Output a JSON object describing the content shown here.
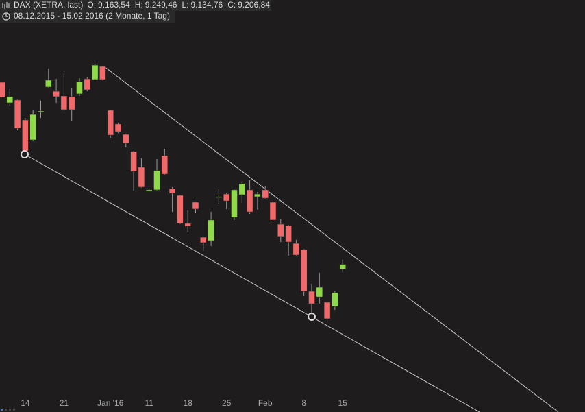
{
  "header": {
    "title": "DAX (XETRA, last)",
    "quote": [
      {
        "label": "O:",
        "value": "9.163,54"
      },
      {
        "label": "H:",
        "value": "9.249,46"
      },
      {
        "label": "L:",
        "value": "9.134,76"
      },
      {
        "label": "C:",
        "value": "9.206,84"
      }
    ],
    "range": "08.12.2015 - 15.02.2016 (2 Monate, 1 Tag)"
  },
  "chart_data": {
    "type": "candlestick",
    "categories": [
      null,
      null,
      null,
      "14",
      null,
      null,
      null,
      null,
      "21",
      null,
      null,
      null,
      null,
      null,
      "Jan '16",
      null,
      null,
      null,
      null,
      "11",
      null,
      null,
      null,
      null,
      "18",
      null,
      null,
      null,
      null,
      "25",
      null,
      null,
      null,
      null,
      "Feb",
      null,
      null,
      null,
      null,
      "8",
      null,
      null,
      null,
      null,
      "15"
    ],
    "open": [
      10855,
      10669,
      10694,
      10514,
      10334,
      10588,
      10812,
      10774,
      10731,
      10725,
      10750,
      10886,
      10880,
      10998,
      10601,
      10477,
      10383,
      10228,
      10086,
      9868,
      9881,
      10191,
      9893,
      9831,
      9577,
      9769,
      9452,
      9421,
      9812,
      9843,
      9632,
      9837,
      9881,
      9819,
      9881,
      9769,
      9570,
      9558,
      9396,
      9341,
      8962,
      8912,
      8863,
      8825,
      9163.54
    ],
    "high": [
      10855,
      10793,
      10700,
      10532,
      10607,
      10688,
      10979,
      10886,
      10936,
      10806,
      10892,
      10905,
      11017,
      11004,
      10607,
      10489,
      10390,
      10234,
      10166,
      9893,
      10160,
      10253,
      9906,
      9837,
      9694,
      9775,
      9459,
      9682,
      9887,
      9856,
      9887,
      9949,
      9974,
      9862,
      9912,
      9775,
      9614,
      9564,
      9428,
      9347,
      9030,
      9130,
      8869,
      8962,
      9249.46
    ],
    "low": [
      10719,
      10638,
      10421,
      10203,
      10321,
      10532,
      10806,
      10669,
      10594,
      10508,
      10731,
      10774,
      10874,
      10874,
      10352,
      10396,
      10265,
      9874,
      9899,
      9862,
      9874,
      10017,
      9682,
      9570,
      9496,
      9670,
      9328,
      9372,
      9757,
      9707,
      9608,
      9763,
      9663,
      9701,
      9800,
      9595,
      9409,
      9285,
      9285,
      8919,
      8732,
      8850,
      8670,
      8794,
      9134.76
    ],
    "close": [
      10719,
      10725,
      10439,
      10234,
      10563,
      10594,
      10874,
      10725,
      10607,
      10607,
      10861,
      10787,
      11010,
      10880,
      10377,
      10408,
      10303,
      10048,
      9906,
      9881,
      10055,
      10023,
      9850,
      9577,
      9552,
      9707,
      9403,
      9608,
      9819,
      9781,
      9881,
      9937,
      9682,
      9843,
      9806,
      9608,
      9459,
      9409,
      9291,
      8962,
      8850,
      8999,
      8714,
      8950,
      9206.84
    ],
    "ylim": [
      8000,
      11600
    ],
    "up_color": "#8fd94a",
    "down_color": "#f06a6c"
  }
}
